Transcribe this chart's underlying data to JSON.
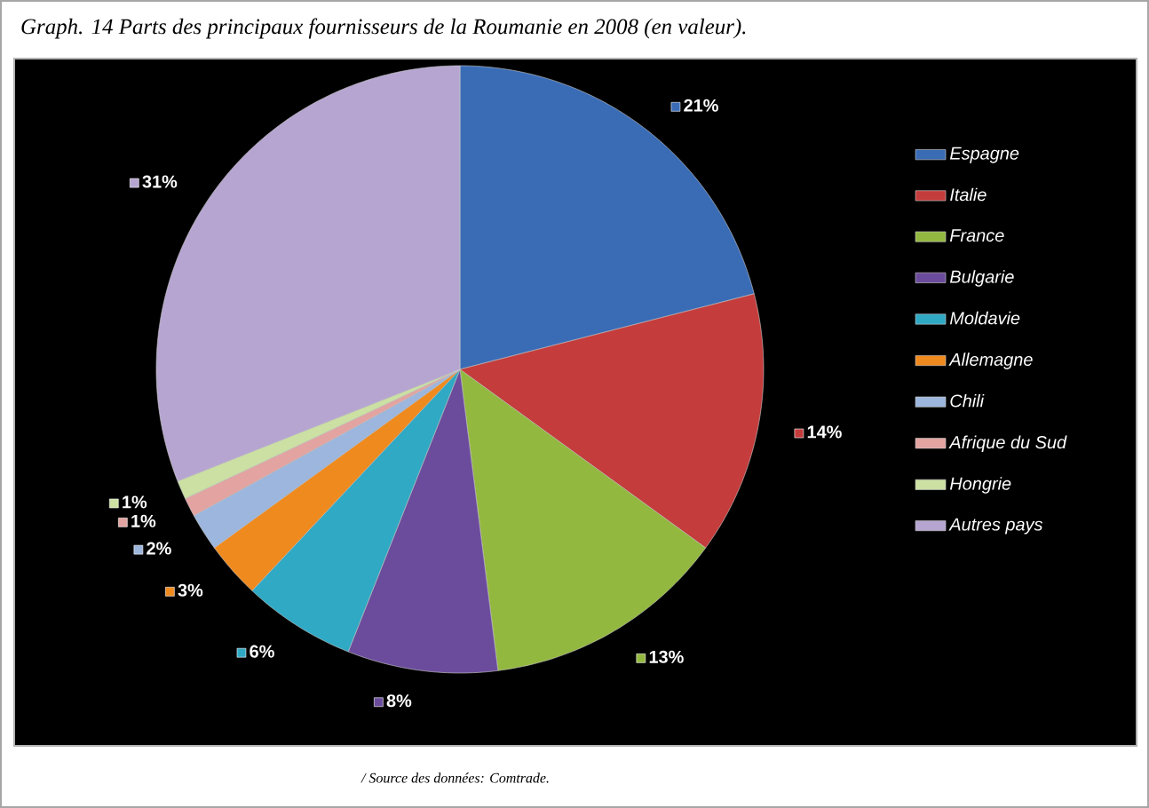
{
  "chart_data": {
    "type": "pie",
    "title": "Graph. 14 Parts des principaux fournisseurs de la Roumanie en 2008 (en valeur).",
    "categories": [
      "Espagne",
      "Italie",
      "France",
      "Bulgarie",
      "Moldavie",
      "Allemagne",
      "Chili",
      "Afrique du Sud",
      "Hongrie",
      "Autres pays"
    ],
    "values": [
      21,
      14,
      13,
      8,
      6,
      3,
      2,
      1,
      1,
      31
    ],
    "colors": [
      "#3a6cb6",
      "#c43c3c",
      "#93b83f",
      "#6b4c9c",
      "#2fa9c4",
      "#ef8a1f",
      "#9cb6dd",
      "#e2a3a1",
      "#cbe0a2",
      "#b6a5d1"
    ],
    "value_labels": [
      "21%",
      "14%",
      "13%",
      "8%",
      "6%",
      "3%",
      "2%",
      "1%",
      "1%",
      "31%"
    ],
    "legend": "right",
    "annotations": [
      "/ Source des données: Comtrade."
    ]
  }
}
